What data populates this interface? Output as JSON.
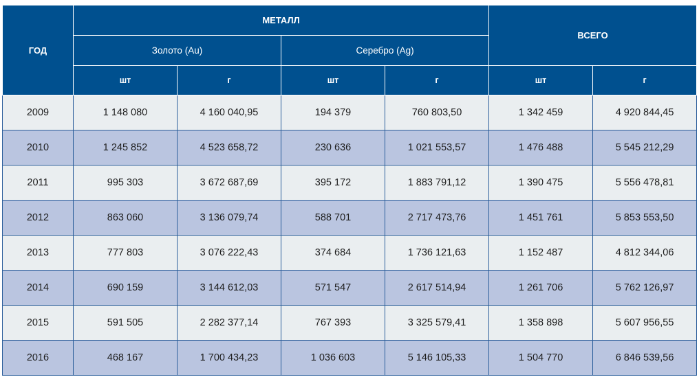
{
  "chart_data": {
    "type": "table",
    "headers": {
      "year": "ГОД",
      "metal": "МЕТАЛЛ",
      "gold": "Золото (Au)",
      "silver": "Серебро (Ag)",
      "total": "ВСЕГО",
      "units": [
        "шт",
        "г",
        "шт",
        "г",
        "шт",
        "г"
      ]
    },
    "rows": [
      {
        "year": "2009",
        "gold_pcs": "1 148 080",
        "gold_g": "4 160 040,95",
        "silver_pcs": "194 379",
        "silver_g": "760 803,50",
        "total_pcs": "1 342 459",
        "total_g": "4 920 844,45"
      },
      {
        "year": "2010",
        "gold_pcs": "1 245 852",
        "gold_g": "4 523 658,72",
        "silver_pcs": "230 636",
        "silver_g": "1 021 553,57",
        "total_pcs": "1 476 488",
        "total_g": "5 545 212,29"
      },
      {
        "year": "2011",
        "gold_pcs": "995 303",
        "gold_g": "3 672 687,69",
        "silver_pcs": "395 172",
        "silver_g": "1 883 791,12",
        "total_pcs": "1 390 475",
        "total_g": "5 556 478,81"
      },
      {
        "year": "2012",
        "gold_pcs": "863 060",
        "gold_g": "3 136 079,74",
        "silver_pcs": "588 701",
        "silver_g": "2 717 473,76",
        "total_pcs": "1 451 761",
        "total_g": "5 853 553,50"
      },
      {
        "year": "2013",
        "gold_pcs": "777 803",
        "gold_g": "3 076 222,43",
        "silver_pcs": "374 684",
        "silver_g": "1 736 121,63",
        "total_pcs": "1 152 487",
        "total_g": "4 812 344,06"
      },
      {
        "year": "2014",
        "gold_pcs": "690 159",
        "gold_g": "3 144 612,03",
        "silver_pcs": "571 547",
        "silver_g": "2 617 514,94",
        "total_pcs": "1 261 706",
        "total_g": "5 762 126,97"
      },
      {
        "year": "2015",
        "gold_pcs": "591 505",
        "gold_g": "2 282 377,14",
        "silver_pcs": "767 393",
        "silver_g": "3 325 579,41",
        "total_pcs": "1 358 898",
        "total_g": "5 607 956,55"
      },
      {
        "year": "2016",
        "gold_pcs": "468 167",
        "gold_g": "1 700 434,23",
        "silver_pcs": "1 036 603",
        "silver_g": "5 146 105,33",
        "total_pcs": "1 504 770",
        "total_g": "6 846 539,56"
      }
    ]
  },
  "colors": {
    "header_bg": "#00508f",
    "header_text": "#ffffff",
    "row_light": "#eaeef0",
    "row_dark": "#bac5e0",
    "grid_line": "#2a5d9a"
  }
}
